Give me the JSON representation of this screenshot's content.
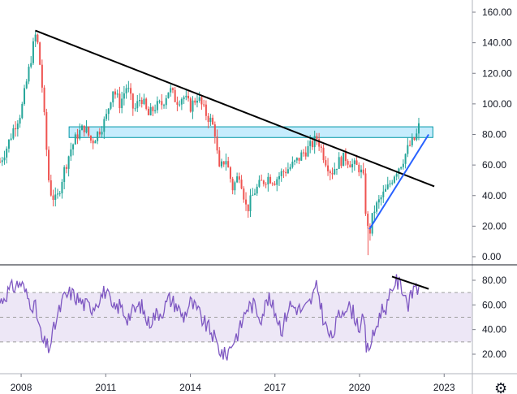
{
  "chart_data": [
    {
      "type": "line",
      "title": "",
      "xlabel": "",
      "ylabel": "",
      "x_range": [
        2007.25,
        2024.0
      ],
      "ylim": [
        -5,
        165
      ],
      "grid": false,
      "x_ticks": [
        {
          "value": 2008,
          "label": "2008"
        },
        {
          "value": 2011,
          "label": "2011"
        },
        {
          "value": 2014,
          "label": "2014"
        },
        {
          "value": 2017,
          "label": "2017"
        },
        {
          "value": 2020,
          "label": "2020"
        },
        {
          "value": 2023,
          "label": "2023"
        }
      ],
      "y_ticks": [
        "0.00",
        "20.00",
        "40.00",
        "60.00",
        "80.00",
        "100.00",
        "120.00",
        "140.00",
        "160.00"
      ],
      "price_color_up": "#26a69a",
      "price_color_down": "#ef5350",
      "series": [
        {
          "x": [
            2007.25,
            2007.5,
            2007.75,
            2008.0,
            2008.25,
            2008.5,
            2008.6,
            2008.75,
            2008.9,
            2009.0,
            2009.1,
            2009.25,
            2009.5,
            2009.75,
            2010.0,
            2010.25,
            2010.5,
            2010.75,
            2011.0,
            2011.25,
            2011.5,
            2011.75,
            2012.0,
            2012.25,
            2012.5,
            2012.75,
            2013.0,
            2013.25,
            2013.5,
            2013.75,
            2014.0,
            2014.25,
            2014.5,
            2014.75,
            2014.9,
            2015.0,
            2015.25,
            2015.5,
            2015.75,
            2016.0,
            2016.25,
            2016.5,
            2016.75,
            2017.0,
            2017.25,
            2017.5,
            2017.75,
            2018.0,
            2018.25,
            2018.5,
            2018.75,
            2019.0,
            2019.25,
            2019.5,
            2019.75,
            2020.0,
            2020.15,
            2020.25,
            2020.35,
            2020.5,
            2020.75,
            2021.0,
            2021.25,
            2021.5,
            2021.75,
            2022.0,
            2022.1
          ],
          "y": [
            62,
            72,
            85,
            95,
            120,
            145,
            138,
            110,
            70,
            45,
            40,
            36,
            55,
            70,
            80,
            85,
            75,
            82,
            90,
            110,
            100,
            112,
            95,
            105,
            92,
            98,
            100,
            110,
            102,
            105,
            98,
            105,
            95,
            88,
            80,
            55,
            65,
            45,
            55,
            30,
            42,
            48,
            52,
            50,
            55,
            58,
            62,
            68,
            72,
            78,
            65,
            55,
            62,
            65,
            60,
            58,
            50,
            20,
            15,
            30,
            38,
            45,
            55,
            62,
            72,
            78,
            85
          ]
        }
      ],
      "annotations": {
        "resistance_zone": {
          "y_low": 78,
          "y_high": 85,
          "x_start": 2009.7,
          "x_end": 2022.6
        },
        "downtrend_line": {
          "from": [
            2008.5,
            148
          ],
          "to": [
            2022.65,
            46
          ],
          "color": "#000000"
        },
        "uptrend_line": {
          "from": [
            2020.35,
            18
          ],
          "to": [
            2022.45,
            80
          ],
          "color": "#2962ff"
        }
      }
    },
    {
      "type": "line",
      "title": "",
      "ylim": [
        13,
        88
      ],
      "y_ticks": [
        "20.00",
        "40.00",
        "60.00",
        "80.00"
      ],
      "levels": [
        30,
        50,
        70
      ],
      "line_color": "#7e57c2",
      "band_color": "#ede7f6",
      "series": [
        {
          "x": [
            2007.25,
            2007.5,
            2007.75,
            2008.0,
            2008.25,
            2008.5,
            2008.75,
            2009.0,
            2009.25,
            2009.5,
            2009.75,
            2010.0,
            2010.25,
            2010.5,
            2010.75,
            2011.0,
            2011.25,
            2011.5,
            2011.75,
            2012.0,
            2012.25,
            2012.5,
            2012.75,
            2013.0,
            2013.25,
            2013.5,
            2013.75,
            2014.0,
            2014.25,
            2014.5,
            2014.75,
            2015.0,
            2015.25,
            2015.5,
            2015.75,
            2016.0,
            2016.25,
            2016.5,
            2016.75,
            2017.0,
            2017.25,
            2017.5,
            2017.75,
            2018.0,
            2018.25,
            2018.5,
            2018.75,
            2019.0,
            2019.25,
            2019.5,
            2019.75,
            2020.0,
            2020.15,
            2020.25,
            2020.5,
            2020.75,
            2021.0,
            2021.25,
            2021.5,
            2021.75,
            2022.0,
            2022.1
          ],
          "y": [
            62,
            70,
            75,
            78,
            65,
            58,
            30,
            25,
            48,
            65,
            70,
            65,
            60,
            58,
            65,
            72,
            55,
            60,
            50,
            55,
            60,
            45,
            52,
            55,
            65,
            60,
            50,
            62,
            55,
            45,
            38,
            25,
            18,
            30,
            40,
            58,
            60,
            50,
            65,
            55,
            40,
            60,
            58,
            55,
            62,
            75,
            45,
            32,
            50,
            60,
            55,
            42,
            48,
            22,
            35,
            55,
            60,
            80,
            75,
            60,
            80,
            68
          ]
        }
      ],
      "trend_line": {
        "from": [
          2021.15,
          83
        ],
        "to": [
          2022.45,
          73
        ],
        "color": "#000000"
      }
    }
  ]
}
